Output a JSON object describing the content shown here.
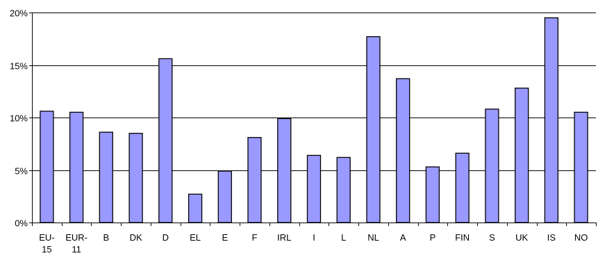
{
  "chart_data": {
    "type": "bar",
    "categories": [
      [
        "EU-",
        "15"
      ],
      [
        "EUR-",
        "11"
      ],
      [
        "B"
      ],
      [
        "DK"
      ],
      [
        "D"
      ],
      [
        "EL"
      ],
      [
        "E"
      ],
      [
        "F"
      ],
      [
        "IRL"
      ],
      [
        "I"
      ],
      [
        "L"
      ],
      [
        "NL"
      ],
      [
        "A"
      ],
      [
        "P"
      ],
      [
        "FIN"
      ],
      [
        "S"
      ],
      [
        "UK"
      ],
      [
        "IS"
      ],
      [
        "NO"
      ]
    ],
    "values": [
      10.6,
      10.5,
      8.6,
      8.5,
      15.6,
      2.7,
      4.9,
      8.1,
      9.9,
      6.4,
      6.2,
      17.7,
      13.7,
      5.3,
      6.6,
      10.8,
      12.8,
      19.5,
      10.5
    ],
    "ylim": [
      0,
      20
    ],
    "yticks": [
      0,
      5,
      10,
      15,
      20
    ],
    "ytick_labels": [
      "0%",
      "5%",
      "10%",
      "15%",
      "20%"
    ],
    "grid": true,
    "colors": {
      "bar_fill": "#9999ff",
      "bar_stroke": "#000000",
      "grid": "#000000",
      "axis": "#000000"
    }
  }
}
